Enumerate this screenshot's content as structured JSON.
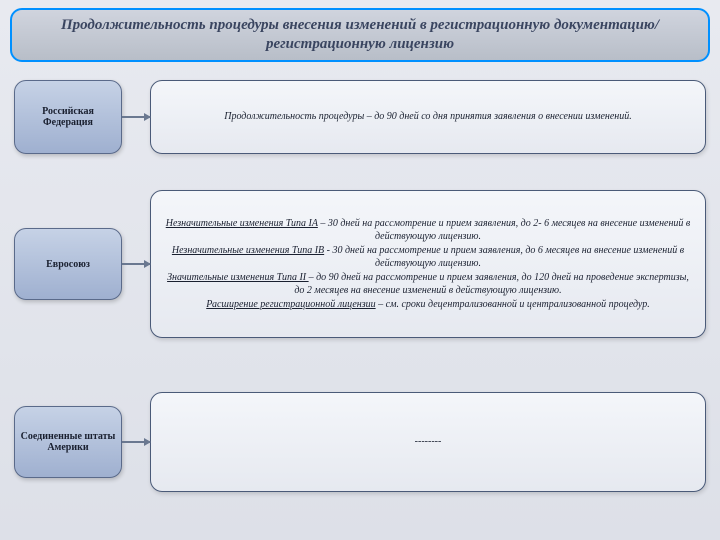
{
  "colors": {
    "title_border": "#0090ff",
    "title_bg_top": "#d0d4de",
    "title_bg_bottom": "#b8bec8",
    "title_text": "#3a4560",
    "node_bg_top": "#c6d2e6",
    "node_bg_bottom": "#9fb0d0",
    "node_border": "#5a6a8a",
    "desc_bg_top": "#f4f6fa",
    "desc_bg_bottom": "#e6e9f0",
    "desc_border": "#4a5a78",
    "connector": "#6a7890",
    "page_bg_top": "#e8eaf0",
    "page_bg_bottom": "#dde0e8",
    "text": "#1a2030"
  },
  "typography": {
    "title_fontsize": 15,
    "title_style": "bold italic",
    "node_fontsize": 10,
    "node_weight": "bold",
    "desc_fontsize": 10,
    "desc_style": "italic",
    "font_family": "Georgia serif"
  },
  "title": "Продолжительность процедуры внесения изменений в регистрационную документацию/регистрационную лицензию",
  "rows": [
    {
      "label": "Российская Федерация",
      "desc_plain": "Продолжительность процедуры – до 90 дней со дня принятия заявления о внесении изменений."
    },
    {
      "label": "Евросоюз",
      "desc_lines": [
        {
          "u": "Незначительные изменения Типа IA",
          "rest": " – 30 дней на рассмотрение и прием заявления, до 2- 6 месяцев на внесение изменений в действующую лицензию."
        },
        {
          "u": "Незначительные изменения Типа IB",
          "rest": " - 30 дней на рассмотрение и прием заявления, до 6 месяцев на внесение изменений в действующую лицензию."
        },
        {
          "u": "Значительные изменения Типа II ",
          "rest": "– до 90 дней на рассмотрение и прием заявления, до 120 дней на проведение экспертизы, до 2 месяцев на внесение изменений в действующую лицензию."
        },
        {
          "u": "Расширение регистрационной лицензии",
          "rest": " – см. сроки децентрализованной и централизованной процедур."
        }
      ]
    },
    {
      "label": "Соединенные штаты Америки",
      "desc_plain": "--------"
    }
  ]
}
